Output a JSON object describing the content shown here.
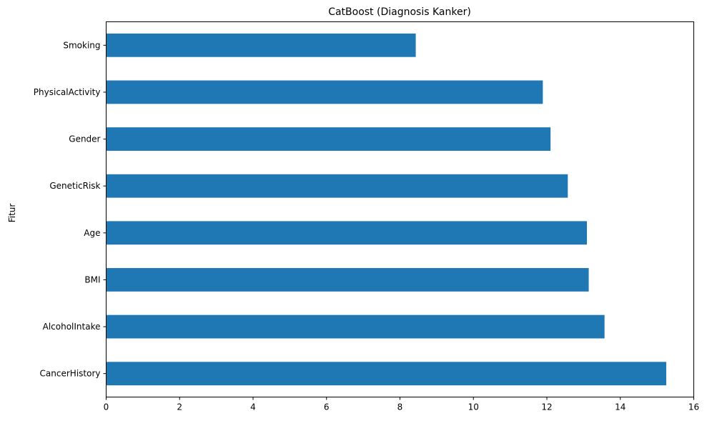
{
  "chart_data": {
    "type": "bar",
    "orientation": "horizontal",
    "title": "CatBoost (Diagnosis Kanker)",
    "xlabel": "",
    "ylabel": "Fitur",
    "categories": [
      "CancerHistory",
      "AlcoholIntake",
      "BMI",
      "Age",
      "GeneticRisk",
      "Gender",
      "PhysicalActivity",
      "Smoking"
    ],
    "values": [
      15.25,
      13.57,
      13.14,
      13.09,
      12.57,
      12.1,
      11.89,
      8.43
    ],
    "xlim": [
      0,
      16
    ],
    "xticks": [
      0,
      2,
      4,
      6,
      8,
      10,
      12,
      14,
      16
    ],
    "grid": false,
    "legend": "none",
    "bar_color": "#1f77b4"
  }
}
